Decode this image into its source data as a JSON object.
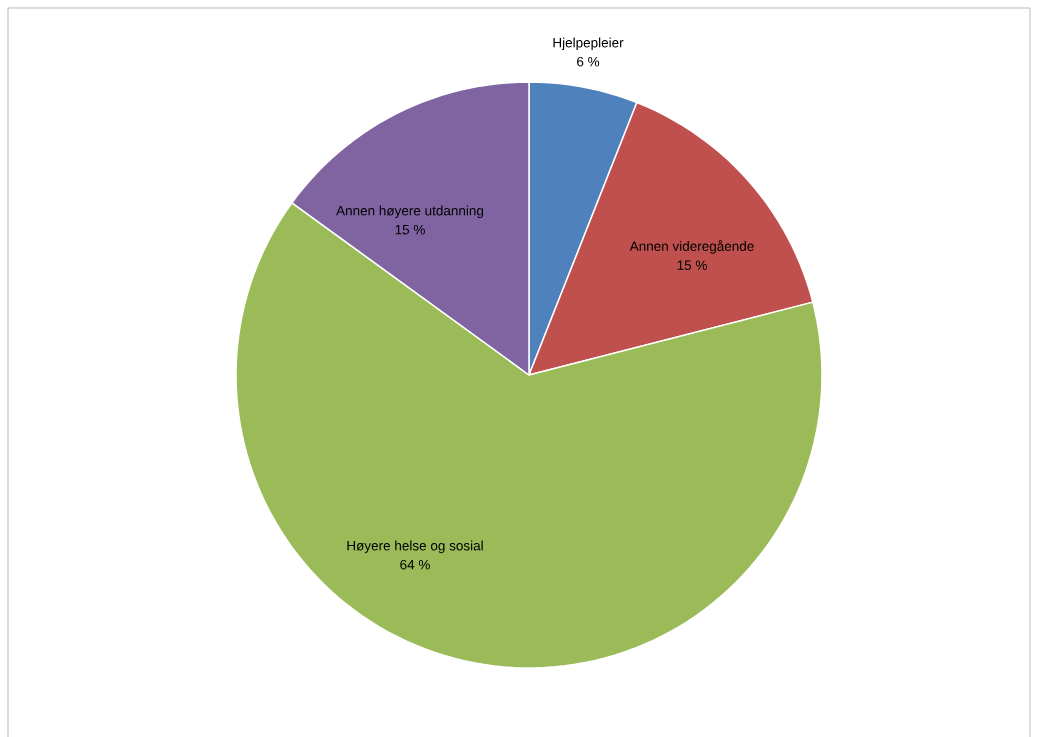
{
  "chart_data": {
    "type": "pie",
    "categories": [
      "Hjelpepleier",
      "Annen videregående",
      "Høyere helse og sosial",
      "Annen høyere utdanning"
    ],
    "values": [
      6,
      15,
      64,
      15
    ],
    "value_labels": [
      "6 %",
      "15 %",
      "64 %",
      "15 %"
    ],
    "colors": [
      "#4f81bd",
      "#c0504d",
      "#9bbb59",
      "#8064a2"
    ]
  }
}
